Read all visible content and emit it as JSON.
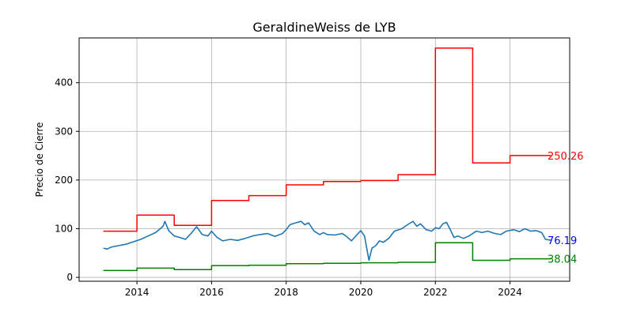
{
  "chart_data": {
    "type": "line",
    "title": "GeraldineWeiss de LYB",
    "xlabel": "",
    "ylabel": "Precio de Cierre",
    "xlim": [
      2012.45,
      2025.6
    ],
    "ylim": [
      -8,
      492
    ],
    "x_ticks": [
      2014,
      2016,
      2018,
      2020,
      2022,
      2024
    ],
    "x_tick_labels": [
      "2014",
      "2016",
      "2018",
      "2020",
      "2022",
      "2024"
    ],
    "y_ticks": [
      0,
      100,
      200,
      300,
      400
    ],
    "y_tick_labels": [
      "0",
      "100",
      "200",
      "300",
      "400"
    ],
    "grid": true,
    "colors": {
      "price": "#1f77b4",
      "upper": "#ff0000",
      "lower": "#008000",
      "end_label_price": "#0000ff"
    },
    "series": [
      {
        "key": "upper",
        "kind": "step",
        "x": [
          2013.1,
          2014.0,
          2015.0,
          2016.0,
          2017.0,
          2018.0,
          2019.0,
          2020.0,
          2021.0,
          2022.0,
          2023.0,
          2024.0
        ],
        "values": [
          95,
          128,
          107,
          158,
          168,
          190,
          197,
          199,
          211,
          471,
          235,
          250.26
        ],
        "x_end": 2025.1
      },
      {
        "key": "lower",
        "kind": "step",
        "x": [
          2013.1,
          2014.0,
          2015.0,
          2016.0,
          2017.0,
          2018.0,
          2019.0,
          2020.0,
          2021.0,
          2022.0,
          2023.0,
          2024.0
        ],
        "values": [
          14,
          19,
          16,
          24,
          25,
          28,
          29,
          30,
          31,
          71,
          35,
          38.04
        ],
        "x_end": 2025.1
      },
      {
        "key": "price",
        "kind": "line",
        "x": [
          2013.1,
          2013.2,
          2013.3,
          2013.5,
          2013.7,
          2013.9,
          2014.1,
          2014.3,
          2014.5,
          2014.7,
          2014.75,
          2014.85,
          2015.0,
          2015.15,
          2015.3,
          2015.45,
          2015.6,
          2015.75,
          2015.9,
          2016.0,
          2016.15,
          2016.3,
          2016.5,
          2016.7,
          2016.9,
          2017.1,
          2017.3,
          2017.5,
          2017.7,
          2017.9,
          2018.0,
          2018.1,
          2018.25,
          2018.4,
          2018.5,
          2018.6,
          2018.75,
          2018.9,
          2019.0,
          2019.1,
          2019.3,
          2019.5,
          2019.6,
          2019.75,
          2019.9,
          2020.0,
          2020.1,
          2020.17,
          2020.22,
          2020.3,
          2020.4,
          2020.5,
          2020.6,
          2020.75,
          2020.9,
          2021.1,
          2021.25,
          2021.4,
          2021.5,
          2021.6,
          2021.75,
          2021.9,
          2022.0,
          2022.1,
          2022.2,
          2022.3,
          2022.4,
          2022.5,
          2022.6,
          2022.75,
          2022.9,
          2023.1,
          2023.25,
          2023.4,
          2023.6,
          2023.75,
          2023.9,
          2024.1,
          2024.25,
          2024.4,
          2024.55,
          2024.7,
          2024.85,
          2024.95,
          2025.1
        ],
        "values": [
          60,
          58,
          62,
          65,
          68,
          73,
          78,
          85,
          92,
          105,
          115,
          96,
          85,
          82,
          78,
          90,
          104,
          88,
          85,
          95,
          82,
          75,
          78,
          76,
          80,
          85,
          88,
          90,
          84,
          90,
          98,
          108,
          112,
          115,
          108,
          112,
          95,
          88,
          92,
          88,
          87,
          90,
          85,
          75,
          88,
          96,
          85,
          55,
          35,
          60,
          65,
          75,
          72,
          80,
          95,
          100,
          108,
          115,
          105,
          110,
          98,
          95,
          102,
          100,
          110,
          113,
          98,
          82,
          85,
          80,
          85,
          95,
          92,
          95,
          90,
          88,
          95,
          98,
          94,
          100,
          95,
          96,
          92,
          78,
          76.19
        ]
      }
    ],
    "end_labels": [
      {
        "key": "upper",
        "text": "250.26",
        "value": 250.26
      },
      {
        "key": "price",
        "text": "76.19",
        "value": 76.19
      },
      {
        "key": "lower",
        "text": "38.04",
        "value": 38.04
      }
    ]
  }
}
